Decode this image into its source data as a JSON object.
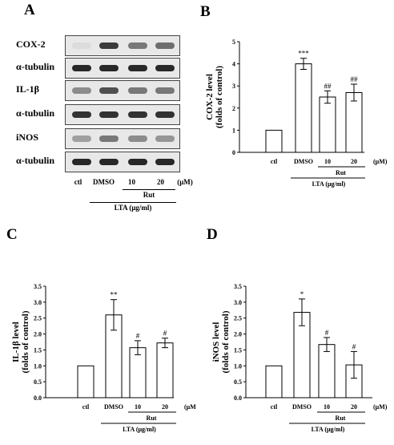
{
  "panels": [
    "A",
    "B",
    "C",
    "D"
  ],
  "blot": {
    "rows": [
      {
        "label": "COX-2",
        "bands": [
          0.05,
          0.85,
          0.55,
          0.6
        ]
      },
      {
        "label": "α-tubulin",
        "bands": [
          0.95,
          0.95,
          0.95,
          0.95
        ]
      },
      {
        "label": "IL-1β",
        "bands": [
          0.45,
          0.75,
          0.55,
          0.55
        ]
      },
      {
        "label": "α-tubulin",
        "bands": [
          0.9,
          0.9,
          0.9,
          0.9
        ]
      },
      {
        "label": "iNOS",
        "bands": [
          0.35,
          0.55,
          0.45,
          0.4
        ]
      },
      {
        "label": "α-tubulin",
        "bands": [
          0.95,
          0.95,
          0.95,
          0.95
        ]
      }
    ],
    "lanes": [
      "ctl",
      "DMSO",
      "10",
      "20"
    ],
    "unit": "(μM)",
    "rut_label": "Rut",
    "lta_label": "LTA (μg/ml)"
  },
  "chart_data": [
    {
      "type": "bar",
      "panel": "B",
      "categories": [
        "ctl",
        "DMSO",
        "10",
        "20"
      ],
      "values": [
        1.0,
        4.0,
        2.5,
        2.7
      ],
      "errors": [
        0,
        0.25,
        0.28,
        0.38
      ],
      "annotations": [
        "",
        "***",
        "##",
        "##"
      ],
      "ylabel_line1": "COX-2 level",
      "ylabel_line2": "(folds of control)",
      "ylim": [
        0,
        5
      ],
      "yticks": [
        "0",
        "1",
        "2",
        "3",
        "4",
        "5"
      ],
      "unit": "(μM)",
      "rut_label": "Rut",
      "lta_label": "LTA (μg/ml)"
    },
    {
      "type": "bar",
      "panel": "C",
      "categories": [
        "ctl",
        "DMSO",
        "10",
        "20"
      ],
      "values": [
        1.0,
        2.6,
        1.57,
        1.72
      ],
      "errors": [
        0,
        0.48,
        0.22,
        0.15
      ],
      "annotations": [
        "",
        "**",
        "#",
        "#"
      ],
      "ylabel_line1": "IL-1β level",
      "ylabel_line2": "(folds of control)",
      "ylim": [
        0,
        3.5
      ],
      "yticks": [
        "0.0",
        "0.5",
        "1.0",
        "1.5",
        "2.0",
        "2.5",
        "3.0",
        "3.5"
      ],
      "unit": "(μM)",
      "rut_label": "Rut",
      "lta_label": "LTA (μg/ml)"
    },
    {
      "type": "bar",
      "panel": "D",
      "categories": [
        "ctl",
        "DMSO",
        "10",
        "20"
      ],
      "values": [
        1.0,
        2.68,
        1.67,
        1.03
      ],
      "errors": [
        0,
        0.42,
        0.22,
        0.42
      ],
      "annotations": [
        "",
        "*",
        "#",
        "#"
      ],
      "ylabel_line1": "iNOS level",
      "ylabel_line2": "(folds of control)",
      "ylim": [
        0,
        3.5
      ],
      "yticks": [
        "0.0",
        "0.5",
        "1.0",
        "1.5",
        "2.0",
        "2.5",
        "3.0",
        "3.5"
      ],
      "unit": "(μM)",
      "rut_label": "Rut",
      "lta_label": "LTA (μg/ml)"
    }
  ]
}
